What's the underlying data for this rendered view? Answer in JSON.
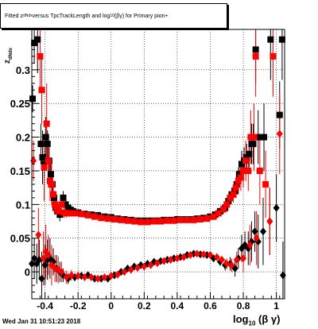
{
  "title": {
    "prefix": "Fitted  z",
    "sub": "dNdx",
    "middle": " versus TpcTrackLength and log",
    "sub2": "10",
    "suffix": "(βγ) for Primary pion+"
  },
  "date_stamp": "Wed Jan 31 10:51:23 2018",
  "y_axis_label": {
    "text": "z",
    "sub": "dNdx"
  },
  "x_axis_label": {
    "text": "log",
    "sub": "10",
    "suffix": " (β γ)"
  },
  "colors": {
    "series_black": "#000000",
    "series_red": "#ff0000",
    "frame": "#000000",
    "grid": "#000000"
  },
  "chart_data": {
    "type": "scatter",
    "xlim": [
      -0.48,
      1.05
    ],
    "ylim": [
      -0.04,
      0.36
    ],
    "grid": true,
    "legend": "none",
    "x_ticks": [
      {
        "value": -0.4,
        "label": "-0.4"
      },
      {
        "value": -0.2,
        "label": "-0.2"
      },
      {
        "value": 0,
        "label": "0"
      },
      {
        "value": 0.2,
        "label": "0.2"
      },
      {
        "value": 0.4,
        "label": "0.4"
      },
      {
        "value": 0.6,
        "label": "0.6"
      },
      {
        "value": 0.8,
        "label": "0.8"
      },
      {
        "value": 1,
        "label": "1"
      }
    ],
    "y_ticks": [
      {
        "value": 0,
        "label": "0"
      },
      {
        "value": 0.05,
        "label": "0.05"
      },
      {
        "value": 0.1,
        "label": "0.1"
      },
      {
        "value": 0.15,
        "label": "0.15"
      },
      {
        "value": 0.2,
        "label": "0.2"
      },
      {
        "value": 0.25,
        "label": "0.25"
      },
      {
        "value": 0.3,
        "label": "0.3"
      }
    ],
    "series": [
      {
        "marker": "square",
        "color": "#000000",
        "role": "mean",
        "points": [
          [
            -0.475,
            0.257,
            0.02
          ],
          [
            -0.465,
            0.34,
            0.03
          ],
          [
            -0.445,
            0.345,
            0.05
          ],
          [
            -0.425,
            0.19,
            0.03
          ],
          [
            -0.415,
            0.17,
            0.04
          ],
          [
            -0.405,
            0.16,
            0.02
          ],
          [
            -0.395,
            0.2,
            0.03
          ],
          [
            -0.385,
            0.19,
            0.02
          ],
          [
            -0.375,
            0.165,
            0.02
          ],
          [
            -0.365,
            0.145,
            0.02
          ],
          [
            -0.355,
            0.13,
            0.015
          ],
          [
            -0.345,
            0.11,
            0.01
          ],
          [
            -0.335,
            0.095,
            0.01
          ],
          [
            -0.325,
            0.09,
            0.01
          ],
          [
            -0.31,
            0.085,
            0.01
          ],
          [
            -0.29,
            0.11,
            0.01
          ],
          [
            -0.275,
            0.1,
            0.008
          ],
          [
            -0.26,
            0.095,
            0.006
          ],
          [
            -0.245,
            0.092,
            0.005
          ],
          [
            -0.23,
            0.09,
            0.004
          ],
          [
            -0.2,
            0.088,
            0.003
          ],
          [
            -0.16,
            0.086,
            0.003
          ],
          [
            -0.12,
            0.085,
            0.003
          ],
          [
            -0.08,
            0.084,
            0.003
          ],
          [
            -0.04,
            0.082,
            0.003
          ],
          [
            0.0,
            0.081,
            0.003
          ],
          [
            0.04,
            0.079,
            0.003
          ],
          [
            0.08,
            0.078,
            0.003
          ],
          [
            0.12,
            0.077,
            0.003
          ],
          [
            0.16,
            0.076,
            0.003
          ],
          [
            0.2,
            0.076,
            0.003
          ],
          [
            0.24,
            0.076,
            0.003
          ],
          [
            0.28,
            0.076,
            0.003
          ],
          [
            0.32,
            0.077,
            0.003
          ],
          [
            0.36,
            0.077,
            0.003
          ],
          [
            0.4,
            0.078,
            0.003
          ],
          [
            0.44,
            0.078,
            0.003
          ],
          [
            0.48,
            0.078,
            0.003
          ],
          [
            0.52,
            0.079,
            0.003
          ],
          [
            0.56,
            0.08,
            0.003
          ],
          [
            0.6,
            0.082,
            0.003
          ],
          [
            0.63,
            0.085,
            0.004
          ],
          [
            0.66,
            0.09,
            0.005
          ],
          [
            0.69,
            0.095,
            0.006
          ],
          [
            0.71,
            0.105,
            0.008
          ],
          [
            0.73,
            0.115,
            0.01
          ],
          [
            0.75,
            0.12,
            0.01
          ],
          [
            0.76,
            0.13,
            0.015
          ],
          [
            0.775,
            0.145,
            0.02
          ],
          [
            0.79,
            0.16,
            0.02
          ],
          [
            0.805,
            0.165,
            0.02
          ],
          [
            0.82,
            0.17,
            0.02
          ],
          [
            0.835,
            0.175,
            0.02
          ],
          [
            0.85,
            0.19,
            0.03
          ],
          [
            0.86,
            0.19,
            0.03
          ],
          [
            0.875,
            0.33,
            0.05
          ],
          [
            0.89,
            0.2,
            0.04
          ],
          [
            0.925,
            0.2,
            0.05
          ],
          [
            0.965,
            0.345,
            0.06
          ],
          [
            1.02,
            0.233,
            0.05
          ],
          [
            1.035,
            0.345,
            0.06
          ]
        ]
      },
      {
        "marker": "square",
        "color": "#ff0000",
        "role": "mean",
        "points": [
          [
            -0.43,
            0.32,
            0.05
          ],
          [
            -0.42,
            0.27,
            0.05
          ],
          [
            -0.405,
            0.155,
            0.05
          ],
          [
            -0.39,
            0.22,
            0.06
          ],
          [
            -0.38,
            0.165,
            0.04
          ],
          [
            -0.37,
            0.135,
            0.03
          ],
          [
            -0.36,
            0.13,
            0.03
          ],
          [
            -0.35,
            0.115,
            0.02
          ],
          [
            -0.34,
            0.1,
            0.015
          ],
          [
            -0.33,
            0.095,
            0.01
          ],
          [
            -0.32,
            0.09,
            0.01
          ],
          [
            -0.3,
            0.1,
            0.01
          ],
          [
            -0.285,
            0.088,
            0.008
          ],
          [
            -0.27,
            0.087,
            0.006
          ],
          [
            -0.25,
            0.087,
            0.005
          ],
          [
            -0.22,
            0.087,
            0.004
          ],
          [
            -0.18,
            0.086,
            0.003
          ],
          [
            -0.14,
            0.084,
            0.003
          ],
          [
            -0.1,
            0.082,
            0.003
          ],
          [
            -0.06,
            0.08,
            0.003
          ],
          [
            -0.02,
            0.079,
            0.003
          ],
          [
            0.02,
            0.078,
            0.003
          ],
          [
            0.06,
            0.077,
            0.003
          ],
          [
            0.1,
            0.076,
            0.003
          ],
          [
            0.14,
            0.075,
            0.003
          ],
          [
            0.18,
            0.074,
            0.003
          ],
          [
            0.22,
            0.074,
            0.003
          ],
          [
            0.26,
            0.075,
            0.003
          ],
          [
            0.3,
            0.075,
            0.003
          ],
          [
            0.34,
            0.076,
            0.003
          ],
          [
            0.38,
            0.076,
            0.003
          ],
          [
            0.42,
            0.077,
            0.003
          ],
          [
            0.46,
            0.077,
            0.003
          ],
          [
            0.5,
            0.077,
            0.003
          ],
          [
            0.54,
            0.078,
            0.003
          ],
          [
            0.58,
            0.079,
            0.003
          ],
          [
            0.62,
            0.082,
            0.004
          ],
          [
            0.65,
            0.087,
            0.005
          ],
          [
            0.68,
            0.093,
            0.006
          ],
          [
            0.7,
            0.1,
            0.008
          ],
          [
            0.72,
            0.11,
            0.01
          ],
          [
            0.74,
            0.115,
            0.012
          ],
          [
            0.755,
            0.125,
            0.015
          ],
          [
            0.77,
            0.135,
            0.02
          ],
          [
            0.785,
            0.14,
            0.02
          ],
          [
            0.8,
            0.15,
            0.025
          ],
          [
            0.815,
            0.165,
            0.03
          ],
          [
            0.83,
            0.15,
            0.03
          ],
          [
            0.845,
            0.2,
            0.04
          ],
          [
            0.865,
            0.2,
            0.05
          ],
          [
            0.875,
            0.32,
            0.06
          ],
          [
            0.9,
            0.15,
            0.05
          ],
          [
            0.935,
            0.13,
            0.05
          ],
          [
            0.98,
            0.32,
            0.06
          ]
        ]
      },
      {
        "marker": "diamond",
        "color": "#000000",
        "role": "sigma",
        "points": [
          [
            -0.48,
            0.012,
            0.02
          ],
          [
            -0.465,
            0.02,
            0.03
          ],
          [
            -0.45,
            0.012,
            0.03
          ],
          [
            -0.435,
            0.018,
            0.03
          ],
          [
            -0.42,
            -0.01,
            0.04
          ],
          [
            -0.4,
            0.01,
            0.03
          ],
          [
            -0.385,
            0.018,
            0.03
          ],
          [
            -0.37,
            0.02,
            0.03
          ],
          [
            -0.35,
            0.015,
            0.02
          ],
          [
            -0.33,
            0.005,
            0.02
          ],
          [
            -0.31,
            0.0,
            0.015
          ],
          [
            -0.29,
            -0.005,
            0.01
          ],
          [
            -0.26,
            -0.01,
            0.008
          ],
          [
            -0.22,
            -0.008,
            0.006
          ],
          [
            -0.18,
            -0.006,
            0.005
          ],
          [
            -0.14,
            -0.005,
            0.004
          ],
          [
            -0.1,
            -0.01,
            0.004
          ],
          [
            -0.06,
            -0.01,
            0.003
          ],
          [
            -0.02,
            -0.01,
            0.003
          ],
          [
            0.02,
            -0.005,
            0.003
          ],
          [
            0.06,
            0.0,
            0.003
          ],
          [
            0.1,
            0.005,
            0.003
          ],
          [
            0.14,
            0.008,
            0.003
          ],
          [
            0.18,
            0.01,
            0.003
          ],
          [
            0.22,
            0.012,
            0.003
          ],
          [
            0.26,
            0.015,
            0.003
          ],
          [
            0.3,
            0.016,
            0.003
          ],
          [
            0.34,
            0.018,
            0.003
          ],
          [
            0.38,
            0.02,
            0.003
          ],
          [
            0.42,
            0.022,
            0.003
          ],
          [
            0.46,
            0.025,
            0.003
          ],
          [
            0.5,
            0.027,
            0.003
          ],
          [
            0.54,
            0.026,
            0.003
          ],
          [
            0.58,
            0.025,
            0.004
          ],
          [
            0.62,
            0.02,
            0.005
          ],
          [
            0.66,
            0.015,
            0.006
          ],
          [
            0.69,
            0.01,
            0.008
          ],
          [
            0.72,
            0.012,
            0.01
          ],
          [
            0.75,
            0.005,
            0.012
          ],
          [
            0.77,
            0.02,
            0.015
          ],
          [
            0.79,
            0.035,
            0.02
          ],
          [
            0.81,
            0.04,
            0.02
          ],
          [
            0.83,
            0.035,
            0.025
          ],
          [
            0.85,
            0.045,
            0.03
          ],
          [
            0.87,
            0.06,
            0.03
          ],
          [
            0.89,
            0.045,
            0.04
          ],
          [
            0.92,
            0.06,
            0.05
          ],
          [
            0.96,
            0.075,
            0.05
          ],
          [
            1.0,
            0.095,
            0.05
          ],
          [
            1.04,
            -0.005,
            0.05
          ]
        ]
      },
      {
        "marker": "diamond",
        "color": "#ff0000",
        "role": "sigma",
        "points": [
          [
            -0.47,
            0.165,
            0.03
          ],
          [
            -0.44,
            0.055,
            0.04
          ],
          [
            -0.41,
            0.02,
            0.04
          ],
          [
            -0.395,
            0.03,
            0.04
          ],
          [
            -0.38,
            0.025,
            0.03
          ],
          [
            -0.36,
            0.01,
            0.03
          ],
          [
            -0.34,
            0.005,
            0.02
          ],
          [
            -0.32,
            0.003,
            0.02
          ],
          [
            -0.3,
            0.0,
            0.015
          ],
          [
            -0.27,
            -0.008,
            0.01
          ],
          [
            -0.24,
            -0.005,
            0.008
          ],
          [
            -0.2,
            -0.006,
            0.006
          ],
          [
            -0.16,
            -0.008,
            0.005
          ],
          [
            -0.12,
            -0.008,
            0.004
          ],
          [
            -0.08,
            -0.01,
            0.004
          ],
          [
            -0.04,
            -0.008,
            0.003
          ],
          [
            0.0,
            -0.006,
            0.003
          ],
          [
            0.04,
            -0.004,
            0.003
          ],
          [
            0.08,
            0.0,
            0.003
          ],
          [
            0.12,
            0.003,
            0.003
          ],
          [
            0.16,
            0.006,
            0.003
          ],
          [
            0.2,
            0.008,
            0.003
          ],
          [
            0.24,
            0.01,
            0.003
          ],
          [
            0.28,
            0.013,
            0.003
          ],
          [
            0.32,
            0.016,
            0.003
          ],
          [
            0.36,
            0.018,
            0.003
          ],
          [
            0.4,
            0.02,
            0.003
          ],
          [
            0.44,
            0.022,
            0.003
          ],
          [
            0.48,
            0.025,
            0.003
          ],
          [
            0.52,
            0.027,
            0.003
          ],
          [
            0.56,
            0.026,
            0.003
          ],
          [
            0.6,
            0.025,
            0.004
          ],
          [
            0.64,
            0.022,
            0.005
          ],
          [
            0.67,
            0.018,
            0.006
          ],
          [
            0.7,
            0.012,
            0.008
          ],
          [
            0.73,
            0.01,
            0.01
          ],
          [
            0.76,
            0.018,
            0.012
          ],
          [
            0.8,
            0.02,
            0.02
          ],
          [
            0.84,
            0.04,
            0.03
          ],
          [
            0.88,
            0.05,
            0.04
          ],
          [
            0.96,
            0.075,
            0.05
          ],
          [
            1.02,
            0.205,
            0.06
          ]
        ]
      }
    ]
  }
}
